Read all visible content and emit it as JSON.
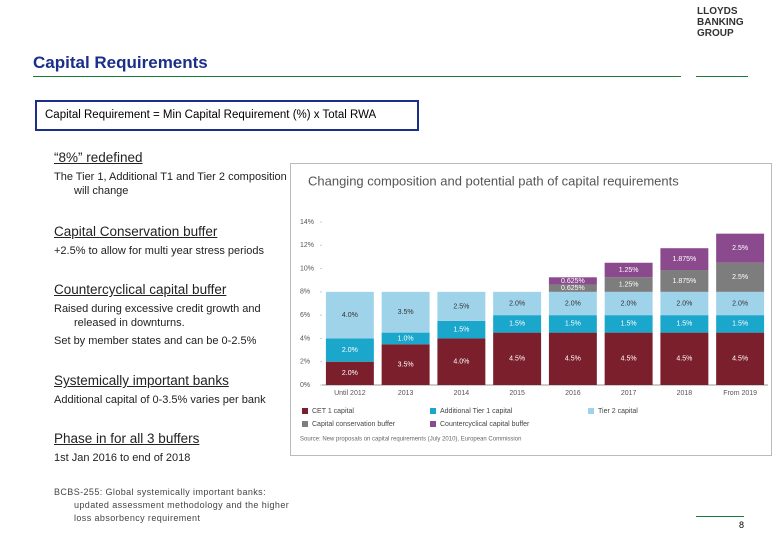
{
  "logo": [
    "LLOYDS",
    "BANKING",
    "GROUP"
  ],
  "title": "Capital Requirements",
  "formula": "Capital Requirement = Min Capital Requirement (%) x Total RWA",
  "sections": [
    {
      "heading": "“8%” redefined",
      "lines": [
        "The Tier 1, Additional T1 and Tier 2 composition will change"
      ]
    },
    {
      "heading": "Capital Conservation buffer",
      "lines": [
        "+2.5% to allow for multi year stress periods"
      ]
    },
    {
      "heading": "Countercyclical capital buffer",
      "lines": [
        "Raised during excessive credit growth and released in downturns.",
        "Set by member states and can be 0-2.5%"
      ]
    },
    {
      "heading": "Systemically important banks",
      "lines": [
        "Additional capital of 0-3.5% varies per bank"
      ]
    },
    {
      "heading": "Phase in for all 3 buffers",
      "lines": [
        "1st Jan 2016 to end of 2018"
      ]
    }
  ],
  "footnote": "BCBS-255: Global systemically important banks: updated assessment methodology and the higher loss absorbency requirement",
  "page_number": "8",
  "chart_data": {
    "type": "bar",
    "stacked": true,
    "title": "Changing composition and potential path of capital requirements",
    "source": "Source: New proposals on capital requirements (July 2010), European Commission",
    "categories": [
      "Until 2012",
      "2013",
      "2014",
      "2015",
      "2016",
      "2017",
      "2018",
      "From 2019"
    ],
    "series": [
      {
        "name": "CET 1 capital",
        "color": "#7b1f2c",
        "values": [
          2,
          3.5,
          4,
          4.5,
          4.5,
          4.5,
          4.5,
          4.5
        ],
        "value_labels": [
          "2.0%",
          "3.5%",
          "4.0%",
          "4.5%",
          "4.5%",
          "4.5%",
          "4.5%",
          "4.5%"
        ]
      },
      {
        "name": "Additional Tier 1 capital",
        "color": "#1ba6cc",
        "values": [
          2,
          1,
          1.5,
          1.5,
          1.5,
          1.5,
          1.5,
          1.5
        ],
        "value_labels": [
          "2.0%",
          "1.0%",
          "1.5%",
          "1.5%",
          "1.5%",
          "1.5%",
          "1.5%",
          "1.5%"
        ]
      },
      {
        "name": "Tier 2 capital",
        "color": "#9fd3ea",
        "values": [
          4,
          3.5,
          2.5,
          2,
          2,
          2,
          2,
          2
        ],
        "value_labels": [
          "4.0%",
          "3.5%",
          "2.5%",
          "2.0%",
          "2.0%",
          "2.0%",
          "2.0%",
          "2.0%"
        ]
      },
      {
        "name": "Capital conservation buffer",
        "color": "#7d7d7d",
        "values": [
          null,
          null,
          null,
          null,
          0.625,
          1.25,
          1.875,
          2.5
        ],
        "value_labels": [
          null,
          null,
          null,
          null,
          "0.625%",
          "1.25%",
          "1.875%",
          "2.5%"
        ]
      },
      {
        "name": "Countercyclical capital buffer",
        "color": "#8b4a8e",
        "values": [
          null,
          null,
          null,
          null,
          0.625,
          1.25,
          1.875,
          2.5
        ],
        "value_labels": [
          null,
          null,
          null,
          null,
          "0.625%",
          "1.25%",
          "1.875%",
          "2.5%"
        ]
      }
    ],
    "ylim": [
      0,
      14
    ],
    "yticks": [
      {
        "value": 0,
        "label": "0%"
      },
      {
        "value": 2,
        "label": "2%"
      },
      {
        "value": 4,
        "label": "4%"
      },
      {
        "value": 6,
        "label": "6%"
      },
      {
        "value": 8,
        "label": "8%"
      },
      {
        "value": 10,
        "label": "10%"
      },
      {
        "value": 12,
        "label": "12%"
      },
      {
        "value": 14,
        "label": "14%"
      }
    ]
  }
}
